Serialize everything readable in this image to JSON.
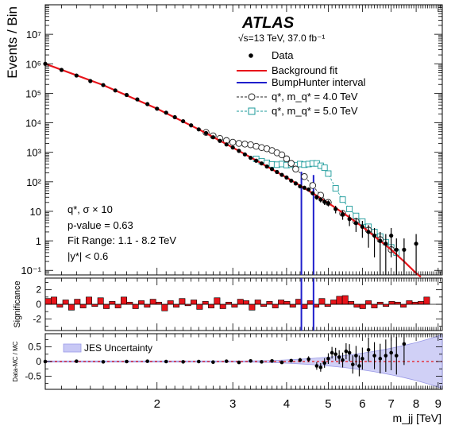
{
  "chart_data": {
    "type": "scatter",
    "experiment_label": "ATLAS",
    "energy_label": "√s=13 TeV, 37.0 fb⁻¹",
    "info_lines": [
      "q*,  σ × 10",
      "p-value = 0.63",
      "Fit Range: 1.1 - 8.2 TeV",
      "|y*| < 0.6"
    ],
    "x_axis": {
      "label": "m_jj [TeV]",
      "scale": "log",
      "range": [
        1.1,
        9.2
      ],
      "ticks": [
        2,
        3,
        4,
        5,
        6,
        7,
        8,
        9
      ],
      "tick_labels": [
        "2",
        "3",
        "4",
        "5",
        "6",
        "7",
        "8",
        "9"
      ]
    },
    "panels": [
      {
        "name": "main",
        "ylabel": "Events / Bin",
        "yscale": "log",
        "ylim": [
          0.07,
          100000000
        ],
        "tick_labels": [
          "10⁻¹",
          "1",
          "10",
          "10²",
          "10³",
          "10⁴",
          "10⁵",
          "10⁶",
          "10⁷"
        ],
        "tick_values": [
          0.1,
          1,
          10,
          100,
          1000,
          10000,
          100000,
          1000000,
          10000000
        ]
      },
      {
        "name": "significance",
        "ylabel": "Significance",
        "ylim": [
          -3.6,
          3.6
        ],
        "tick_labels": [
          "-2",
          "0",
          "2"
        ],
        "tick_values": [
          -2,
          0,
          2
        ]
      },
      {
        "name": "ratio",
        "ylabel": "Data-MC / MC",
        "ylim": [
          -0.95,
          0.95
        ],
        "tick_labels": [
          "-0.5",
          "0",
          "0.5"
        ],
        "tick_values": [
          -0.5,
          0,
          0.5
        ]
      }
    ],
    "legend": {
      "position": "top-right",
      "entries": [
        {
          "label": "Data",
          "marker": "dot",
          "color": "#000000"
        },
        {
          "label": "Background fit",
          "marker": "line",
          "color": "#e8141a"
        },
        {
          "label": "BumpHunter interval",
          "marker": "line",
          "color": "#1f1fcc"
        },
        {
          "label": "q*, m_q* = 4.0 TeV",
          "marker": "circle-dashed",
          "color": "#222222"
        },
        {
          "label": "q*, m_q* = 5.0 TeV",
          "marker": "square-dashed",
          "color": "#1a9a9a"
        }
      ],
      "jes_label": "JES Uncertainty"
    },
    "bumphunter_interval": [
      4.33,
      4.62
    ],
    "background_fit": {
      "x": [
        1.1,
        1.5,
        2.0,
        2.5,
        3.0,
        3.5,
        4.0,
        4.5,
        5.0,
        5.5,
        6.0,
        6.5,
        7.0,
        7.5,
        8.0,
        8.2
      ],
      "y": [
        1000000,
        190000,
        30000,
        6000,
        1450,
        420,
        140,
        50,
        19,
        7.5,
        3.0,
        1.2,
        0.5,
        0.2,
        0.08,
        0.06
      ]
    },
    "data": {
      "x": [
        1.1,
        1.2,
        1.3,
        1.4,
        1.5,
        1.6,
        1.7,
        1.8,
        1.9,
        2.0,
        2.1,
        2.2,
        2.3,
        2.4,
        2.5,
        2.6,
        2.7,
        2.8,
        2.9,
        3.0,
        3.1,
        3.2,
        3.3,
        3.4,
        3.5,
        3.6,
        3.7,
        3.8,
        3.9,
        4.0,
        4.1,
        4.2,
        4.3,
        4.4,
        4.5,
        4.6,
        4.7,
        4.8,
        4.9,
        5.0,
        5.2,
        5.4,
        5.6,
        5.8,
        6.0,
        6.2,
        6.4,
        6.6,
        6.8,
        7.0,
        7.2,
        7.5,
        8.0
      ],
      "y": [
        1000000,
        620000,
        400000,
        260000,
        190000,
        125000,
        88000,
        62000,
        43000,
        30000,
        22000,
        15500,
        11300,
        8200,
        6000,
        4500,
        3250,
        2450,
        1850,
        1450,
        1120,
        850,
        650,
        520,
        420,
        330,
        270,
        215,
        172,
        140,
        110,
        88,
        70,
        63,
        55,
        41,
        30,
        25,
        21,
        19,
        12,
        8,
        5.5,
        4,
        3,
        2,
        1.5,
        1,
        0.8,
        1.5,
        0.5,
        0.5,
        0.8
      ]
    },
    "signal_4TeV": {
      "x": [
        2.6,
        2.7,
        2.8,
        2.9,
        3.0,
        3.1,
        3.2,
        3.3,
        3.4,
        3.5,
        3.6,
        3.7,
        3.8,
        3.9,
        4.0,
        4.1,
        4.2,
        4.4,
        4.6,
        4.8,
        5.0,
        5.4,
        5.8,
        6.2,
        6.6,
        7.0
      ],
      "y": [
        4700,
        3600,
        2950,
        2500,
        2200,
        2000,
        1900,
        1800,
        1600,
        1450,
        1320,
        1150,
        960,
        820,
        600,
        420,
        270,
        150,
        75,
        35,
        20,
        8.5,
        4.5,
        2.3,
        1.1,
        0.5
      ]
    },
    "signal_5TeV": {
      "x": [
        3.4,
        3.5,
        3.6,
        3.7,
        3.8,
        3.9,
        4.0,
        4.1,
        4.2,
        4.3,
        4.4,
        4.5,
        4.6,
        4.7,
        4.8,
        4.9,
        5.0,
        5.2,
        5.4,
        5.6,
        5.8,
        6.0,
        6.2,
        6.4,
        6.6,
        6.8,
        7.0,
        7.2
      ],
      "y": [
        600,
        500,
        440,
        390,
        380,
        400,
        370,
        380,
        360,
        400,
        380,
        400,
        420,
        420,
        350,
        300,
        190,
        60,
        25,
        12,
        7,
        4.5,
        3,
        2,
        1.4,
        0.9,
        0.6,
        0.4
      ]
    },
    "significance": [
      0.8,
      1.0,
      -0.4,
      0.6,
      -0.8,
      0.7,
      -0.5,
      1.0,
      -0.3,
      0.9,
      -0.6,
      0.4,
      -0.5,
      1.0,
      0.3,
      -0.6,
      0.5,
      -0.4,
      0.7,
      0.3,
      -0.9,
      0.5,
      -0.4,
      0.8,
      -0.2,
      0.6,
      -0.7,
      0.4,
      -0.5,
      0.9,
      -0.6,
      0.3,
      -0.4,
      0.7,
      0.5,
      -0.8,
      0.6,
      -0.3,
      0.4,
      -0.5,
      0.6,
      0.4,
      -0.4,
      0.7,
      -0.6,
      0.5,
      -0.4,
      0.8,
      -0.3,
      0.6,
      1.1,
      1.2,
      0.4,
      -0.4,
      -0.6,
      0.5,
      -0.5,
      0.3,
      -0.3,
      0.4,
      0.3,
      -0.4,
      0.5,
      0.3,
      0.4,
      1.0
    ],
    "ratio": {
      "x": [
        1.1,
        1.3,
        1.5,
        1.7,
        1.9,
        2.1,
        2.3,
        2.5,
        2.7,
        2.9,
        3.1,
        3.3,
        3.5,
        3.7,
        3.9,
        4.1,
        4.3,
        4.5,
        4.7,
        4.8,
        4.9,
        5.0,
        5.1,
        5.2,
        5.3,
        5.4,
        5.5,
        5.6,
        5.7,
        5.8,
        5.9,
        6.0,
        6.2,
        6.4,
        6.6,
        6.8,
        7.0,
        7.2,
        7.5
      ],
      "y": [
        0.0,
        0.01,
        -0.01,
        0.0,
        0.01,
        0.0,
        -0.01,
        0.0,
        -0.02,
        0.01,
        -0.03,
        0.02,
        -0.01,
        0.02,
        -0.03,
        0.03,
        0.05,
        0.08,
        -0.15,
        -0.2,
        -0.05,
        0.1,
        0.3,
        0.25,
        0.15,
        0.05,
        0.35,
        0.3,
        -0.1,
        0.2,
        -0.15,
        0.1,
        0.4,
        0.2,
        0.1,
        0.2,
        0.3,
        0.2,
        0.6
      ]
    }
  }
}
